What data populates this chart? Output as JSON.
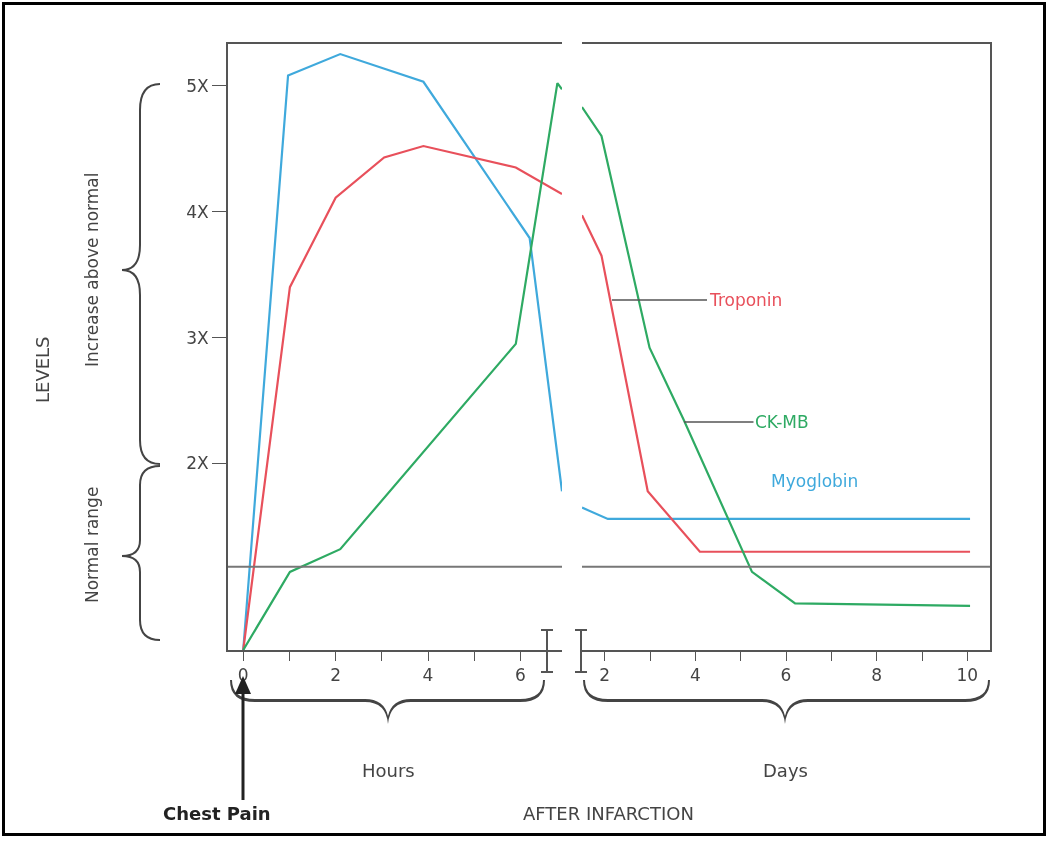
{
  "chart_data": [
    {
      "type": "line",
      "xlim": [
        -0.33,
        6.9
      ],
      "xticks": [
        0,
        {
          "value": 1,
          "label": null
        },
        2,
        {
          "value": 3,
          "label": null
        },
        4,
        {
          "value": 5,
          "label": null
        },
        6
      ],
      "ylim": [
        0.52,
        5.33
      ],
      "yticks": [
        {
          "value": 2,
          "label": "2X"
        },
        {
          "value": 3,
          "label": "3X"
        },
        {
          "value": 4,
          "label": "4X"
        },
        {
          "value": 5,
          "label": "5X"
        }
      ],
      "grid": false,
      "legend": false,
      "series": [
        {
          "color": "#3fa9dc",
          "x": [
            0,
            0.97,
            2.1,
            3.9,
            6.2,
            6.9
          ],
          "values": [
            0.52,
            5.08,
            5.25,
            5.03,
            3.79,
            1.78
          ]
        },
        {
          "color": "#e8505b",
          "x": [
            0,
            1.01,
            2.0,
            3.05,
            3.9,
            5.9,
            6.9
          ],
          "values": [
            0.52,
            3.4,
            4.11,
            4.43,
            4.52,
            4.35,
            4.14
          ]
        },
        {
          "color": "#2eaa63",
          "x": [
            0,
            1.01,
            2.1,
            5.9,
            6.8,
            6.9
          ],
          "values": [
            0.52,
            1.14,
            1.32,
            2.95,
            5.02,
            4.97
          ]
        }
      ],
      "ref_lines": [
        {
          "axis": "y",
          "value": 1.18,
          "color": "#777777"
        }
      ],
      "annotations": [
        "LEVELS",
        "Increase above normal",
        "Normal range",
        "Hours",
        "Chest Pain"
      ]
    },
    {
      "type": "line",
      "xlim": [
        1.5,
        10.5
      ],
      "xticks": [
        2,
        {
          "value": 3,
          "label": null
        },
        4,
        {
          "value": 5,
          "label": null
        },
        6,
        {
          "value": 7,
          "label": null
        },
        8,
        {
          "value": 9,
          "label": null
        },
        10
      ],
      "ylim": [
        0.52,
        5.33
      ],
      "tick_labels": "x",
      "grid": false,
      "legend": false,
      "series": [
        {
          "name": "Myoglobin",
          "color": "#3fa9dc",
          "x": [
            1.5,
            2.07,
            10.06
          ],
          "values": [
            1.65,
            1.56,
            1.56
          ]
        },
        {
          "name": "Troponin",
          "color": "#e8505b",
          "x": [
            1.5,
            1.93,
            2.95,
            4.1,
            10.06
          ],
          "values": [
            3.97,
            3.65,
            1.78,
            1.3,
            1.3
          ]
        },
        {
          "name": "CK-MB",
          "color": "#2eaa63",
          "x": [
            1.5,
            1.93,
            2.99,
            3.74,
            5.25,
            6.2,
            10.06
          ],
          "values": [
            4.83,
            4.6,
            2.92,
            2.35,
            1.14,
            0.89,
            0.87
          ]
        }
      ],
      "ref_lines": [
        {
          "axis": "y",
          "value": 1.18,
          "color": "#777777"
        }
      ],
      "annotations": [
        "Days",
        "AFTER INFARCTION"
      ]
    }
  ]
}
